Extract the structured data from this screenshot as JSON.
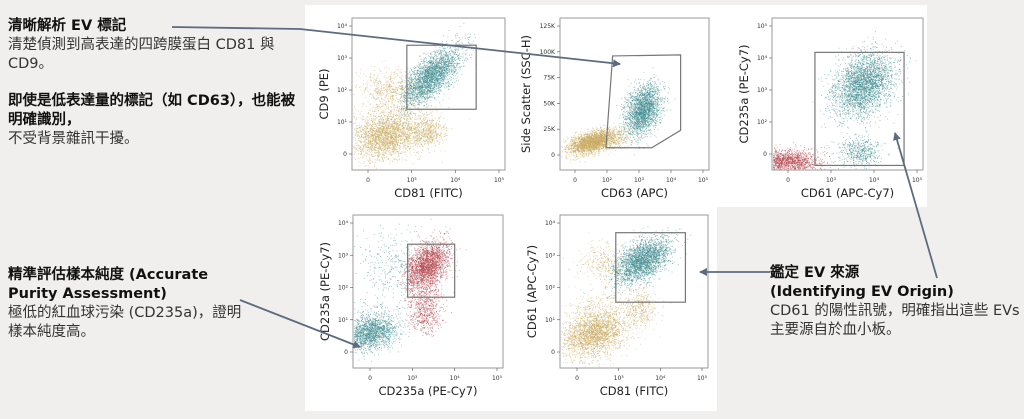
{
  "annotations": {
    "ev_markers": {
      "title": "清晰解析 EV 標記",
      "body": "清楚偵測到高表達的四跨膜蛋白 CD81 與 CD9。",
      "title2": "即使是低表達量的標記（如 CD63），也能被明確識別，",
      "body2": "不受背景雜訊干擾。"
    },
    "purity": {
      "title": "精準評估樣本純度 (Accurate Purity Assessment)",
      "body": "極低的紅血球污染 (CD235a)，證明樣本純度高。"
    },
    "origin": {
      "title": "鑑定 EV 來源",
      "title2": "(Identifying EV Origin)",
      "body": "CD61 的陽性訊號，明確指出這些 EVs 主要源自於血小板。"
    }
  },
  "colors": {
    "gold": "#c9a95c",
    "teal": "#3e8b8f",
    "red": "#b4444b",
    "arrow": "#5d6b80",
    "gate": "#777777"
  },
  "chart_data": [
    {
      "type": "scatter",
      "xlabel": "CD81 (FITC)",
      "ylabel": "CD9 (PE)",
      "xaxis": {
        "scale": "log",
        "ticks": [
          {
            "label": "0",
            "value": 0
          },
          {
            "label": "10³",
            "value": 1000
          },
          {
            "label": "10⁴",
            "value": 10000
          },
          {
            "label": "10⁵",
            "value": 100000
          }
        ]
      },
      "yaxis": {
        "scale": "log",
        "ticks": [
          {
            "label": "0",
            "value": 0
          },
          {
            "label": "10¹",
            "value": 10
          },
          {
            "label": "10²",
            "value": 100
          },
          {
            "label": "10³",
            "value": 1000
          },
          {
            "label": "10⁴",
            "value": 10000
          }
        ]
      },
      "gate": {
        "shape": "rectangle",
        "x": [
          700,
          30000
        ],
        "y": [
          25,
          2500
        ]
      },
      "populations": [
        {
          "color": "gold",
          "x": 150,
          "y": 3,
          "n": 2600,
          "sx": 0.55,
          "sy": 0.55,
          "rho": 0.2
        },
        {
          "color": "gold",
          "x": 200,
          "y": 110,
          "n": 500,
          "sx": 0.45,
          "sy": 0.3,
          "rho": 0
        },
        {
          "color": "gold",
          "x": 2200,
          "y": 4,
          "n": 500,
          "sx": 0.2,
          "sy": 0.35,
          "rho": 0
        },
        {
          "color": "teal",
          "x": 2800,
          "y": 280,
          "n": 2600,
          "sx": 0.33,
          "sy": 0.45,
          "rho": 0.7
        }
      ]
    },
    {
      "type": "scatter",
      "xlabel": "CD63 (APC)",
      "ylabel": "Side Scatter (SSC-H)",
      "xaxis": {
        "scale": "log",
        "ticks": [
          {
            "label": "0",
            "value": 0
          },
          {
            "label": "10²",
            "value": 100
          },
          {
            "label": "10³",
            "value": 1000
          },
          {
            "label": "10⁴",
            "value": 10000
          },
          {
            "label": "10⁵",
            "value": 100000
          }
        ]
      },
      "yaxis": {
        "scale": "linear",
        "ticks": [
          {
            "label": "0",
            "value": 0
          },
          {
            "label": "25K",
            "value": 25000
          },
          {
            "label": "50K",
            "value": 50000
          },
          {
            "label": "75K",
            "value": 75000
          },
          {
            "label": "100K",
            "value": 100000
          },
          {
            "label": "125K",
            "value": 125000
          }
        ]
      },
      "gate": {
        "shape": "polygon",
        "points": [
          [
            150,
            96000
          ],
          [
            20000,
            97000
          ],
          [
            20000,
            24000
          ],
          [
            2500,
            7000
          ],
          [
            90,
            7000
          ]
        ]
      },
      "populations": [
        {
          "color": "gold",
          "x": 25,
          "y": 13000,
          "n": 2600,
          "sx": 0.55,
          "sy": 6000,
          "rho": 0.5
        },
        {
          "color": "teal",
          "x": 1300,
          "y": 44000,
          "n": 2200,
          "sx": 0.28,
          "sy": 12000,
          "rho": 0.3
        }
      ]
    },
    {
      "type": "scatter",
      "xlabel": "CD61 (APC-Cy7)",
      "ylabel": "CD235a (PE-Cy7)",
      "xaxis": {
        "scale": "log",
        "ticks": [
          {
            "label": "0",
            "value": 0
          },
          {
            "label": "10³",
            "value": 1000
          },
          {
            "label": "10⁴",
            "value": 10000
          },
          {
            "label": "10⁵",
            "value": 100000
          }
        ]
      },
      "yaxis": {
        "scale": "log",
        "ticks": [
          {
            "label": "0",
            "value": 0
          },
          {
            "label": "10²",
            "value": 100
          },
          {
            "label": "10³",
            "value": 1000
          },
          {
            "label": "10⁴",
            "value": 10000
          },
          {
            "label": "10⁵",
            "value": 100000
          }
        ]
      },
      "gate": {
        "shape": "rectangle",
        "x": [
          300,
          50000
        ],
        "y": [
          -1,
          15000
        ]
      },
      "populations": [
        {
          "color": "red",
          "x": 30,
          "y": 2,
          "n": 1600,
          "sx": 0.55,
          "sy": 0.25,
          "rho": 0
        },
        {
          "color": "teal",
          "x": 5500,
          "y": 1500,
          "n": 3000,
          "sx": 0.35,
          "sy": 0.5,
          "rho": 0.3
        },
        {
          "color": "teal",
          "x": 4500,
          "y": 5,
          "n": 500,
          "sx": 0.25,
          "sy": 0.3,
          "rho": 0
        }
      ]
    },
    {
      "type": "scatter",
      "xlabel": "CD235a (PE-Cy7)",
      "ylabel": "CD235a (PE-Cy7)",
      "xaxis": {
        "scale": "log",
        "ticks": [
          {
            "label": "0",
            "value": 0
          },
          {
            "label": "10³",
            "value": 1000
          },
          {
            "label": "10⁴",
            "value": 10000
          },
          {
            "label": "10⁵",
            "value": 100000
          }
        ]
      },
      "yaxis": {
        "scale": "log",
        "ticks": [
          {
            "label": "0",
            "value": 0
          },
          {
            "label": "10¹",
            "value": 10
          },
          {
            "label": "10²",
            "value": 100
          },
          {
            "label": "10³",
            "value": 1000
          },
          {
            "label": "10⁴",
            "value": 10000
          }
        ]
      },
      "gate": {
        "shape": "rectangle",
        "x": [
          700,
          10000
        ],
        "y": [
          50,
          2200
        ]
      },
      "populations": [
        {
          "color": "teal",
          "x": 40,
          "y": 3,
          "n": 1800,
          "sx": 0.45,
          "sy": 0.4,
          "rho": 0.2
        },
        {
          "color": "teal",
          "x": 250,
          "y": 500,
          "n": 350,
          "sx": 0.6,
          "sy": 0.6,
          "rho": 0
        },
        {
          "color": "red",
          "x": 2200,
          "y": 500,
          "n": 2200,
          "sx": 0.25,
          "sy": 0.35,
          "rho": 0.4
        },
        {
          "color": "red",
          "x": 2000,
          "y": 25,
          "n": 700,
          "sx": 0.2,
          "sy": 0.45,
          "rho": 0
        }
      ]
    },
    {
      "type": "scatter",
      "xlabel": "CD81 (FITC)",
      "ylabel": "CD61 (APC-Cy7)",
      "xaxis": {
        "scale": "log",
        "ticks": [
          {
            "label": "0",
            "value": 0
          },
          {
            "label": "10³",
            "value": 1000
          },
          {
            "label": "10⁴",
            "value": 10000
          },
          {
            "label": "10⁵",
            "value": 100000
          }
        ]
      },
      "yaxis": {
        "scale": "log",
        "ticks": [
          {
            "label": "0",
            "value": 0
          },
          {
            "label": "10¹",
            "value": 10
          },
          {
            "label": "10²",
            "value": 100
          },
          {
            "label": "10³",
            "value": 1000
          },
          {
            "label": "10⁴",
            "value": 10000
          }
        ]
      },
      "gate": {
        "shape": "rectangle",
        "x": [
          800,
          40000
        ],
        "y": [
          35,
          5000
        ]
      },
      "populations": [
        {
          "color": "gold",
          "x": 150,
          "y": 3,
          "n": 2600,
          "sx": 0.55,
          "sy": 0.55,
          "rho": 0.3
        },
        {
          "color": "gold",
          "x": 250,
          "y": 600,
          "n": 300,
          "sx": 0.4,
          "sy": 0.3,
          "rho": 0
        },
        {
          "color": "gold",
          "x": 3200,
          "y": 25,
          "n": 350,
          "sx": 0.2,
          "sy": 0.3,
          "rho": 0
        },
        {
          "color": "teal",
          "x": 3500,
          "y": 700,
          "n": 2600,
          "sx": 0.33,
          "sy": 0.35,
          "rho": 0.5
        }
      ]
    }
  ]
}
